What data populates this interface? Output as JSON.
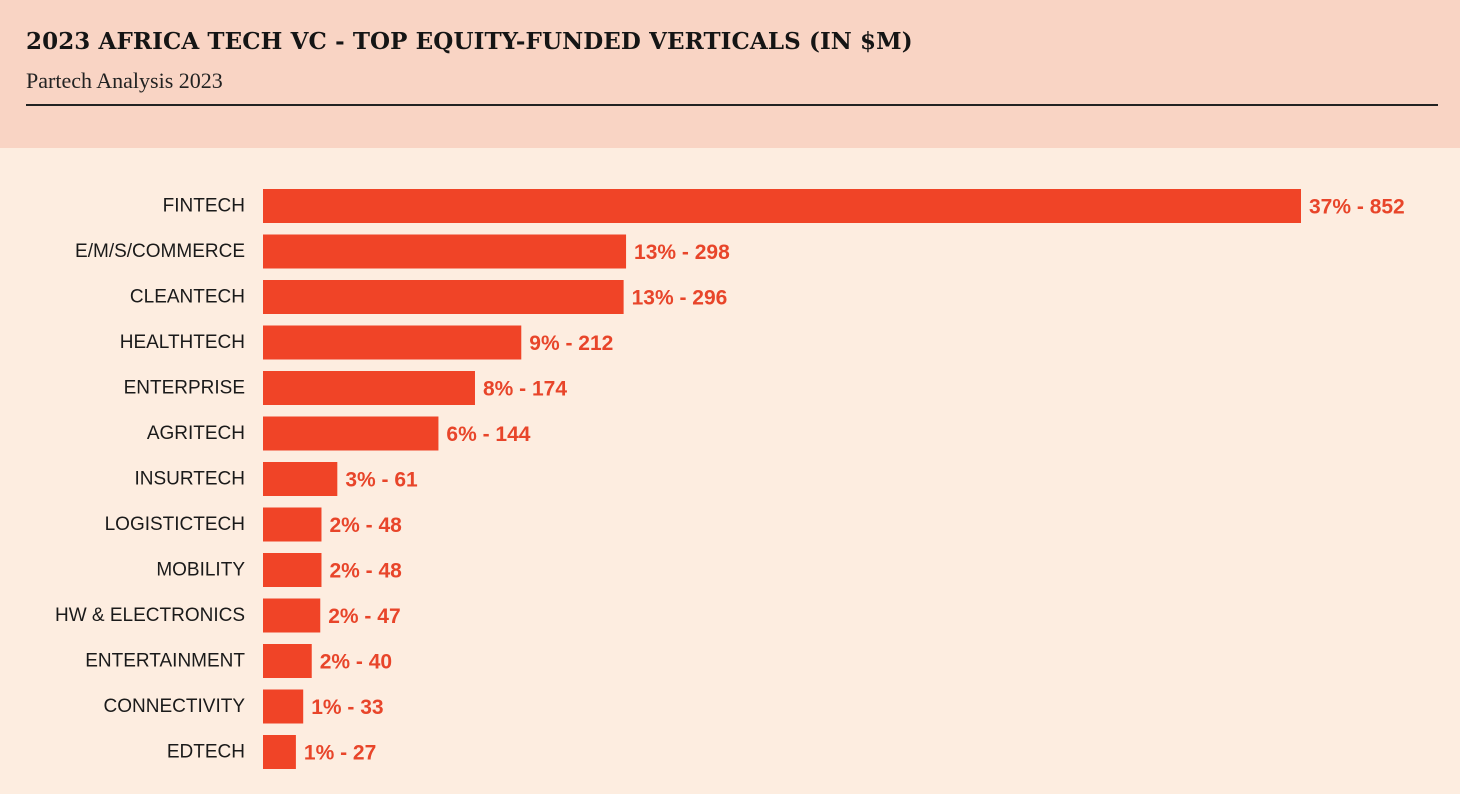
{
  "header": {
    "title": "2023 AFRICA TECH VC - TOP EQUITY-FUNDED VERTICALS (IN $M)",
    "subtitle": "Partech Analysis 2023"
  },
  "colors": {
    "bar": "#F04427",
    "value_label": "#E8452A",
    "header_bg": "#F9D4C4",
    "plot_bg": "#FDEDE0"
  },
  "chart_data": {
    "type": "bar",
    "orientation": "horizontal",
    "title": "2023 AFRICA TECH VC - TOP EQUITY-FUNDED VERTICALS (IN $M)",
    "subtitle": "Partech Analysis 2023",
    "categories": [
      "FINTECH",
      "E/M/S/COMMERCE",
      "CLEANTECH",
      "HEALTHTECH",
      "ENTERPRISE",
      "AGRITECH",
      "INSURTECH",
      "LOGISTICTECH",
      "MOBILITY",
      "HW & ELECTRONICS",
      "ENTERTAINMENT",
      "CONNECTIVITY",
      "EDTECH"
    ],
    "values": [
      852,
      298,
      296,
      212,
      174,
      144,
      61,
      48,
      48,
      47,
      40,
      33,
      27
    ],
    "percentages": [
      "37%",
      "13%",
      "13%",
      "9%",
      "8%",
      "6%",
      "3%",
      "2%",
      "2%",
      "2%",
      "2%",
      "1%",
      "1%"
    ],
    "data_labels": [
      "37% - 852",
      "13% - 298",
      "13% - 296",
      "9% - 212",
      "8% - 174",
      "6% - 144",
      "3% - 61",
      "2% - 48",
      "2% - 48",
      "2% - 47",
      "2% - 40",
      "1% - 33",
      "1% - 27"
    ],
    "xlabel": "",
    "ylabel": "",
    "xlim": [
      0,
      852
    ],
    "grid": false,
    "legend": "none"
  }
}
